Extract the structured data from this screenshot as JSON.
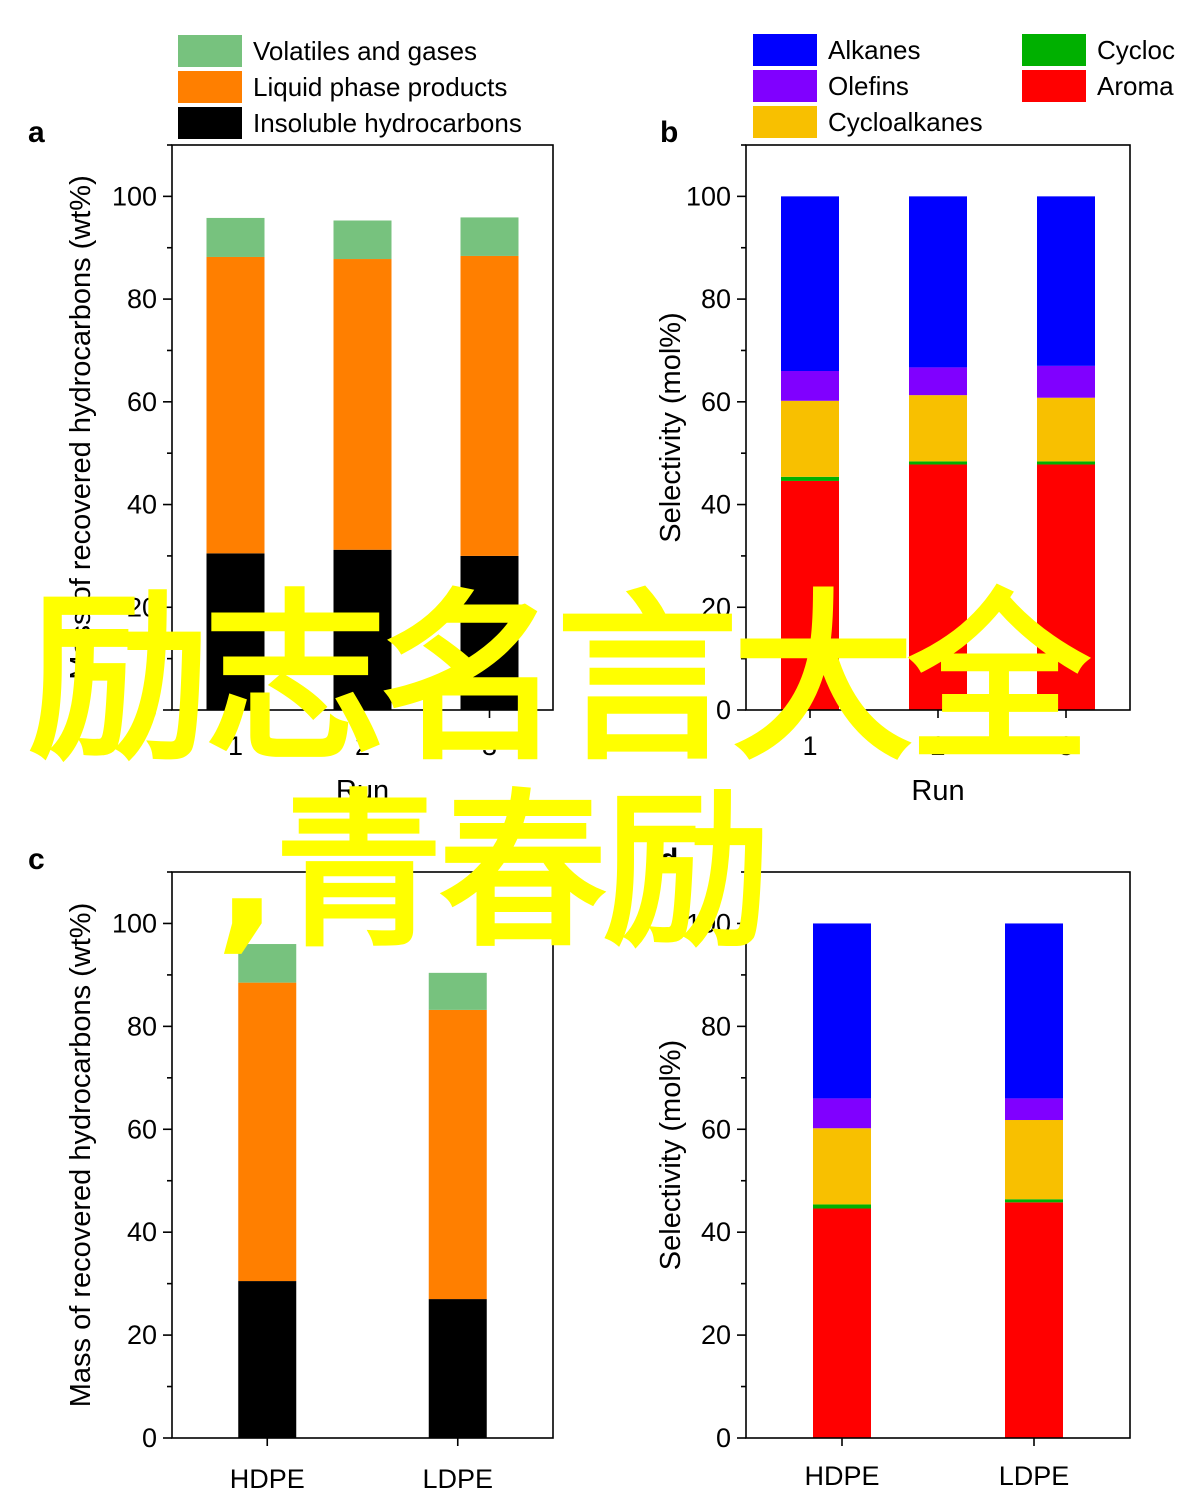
{
  "watermark": {
    "line1": "励志名言大全",
    "line2": ",青春励"
  },
  "colors": {
    "volatiles": "#77c27e",
    "liquid": "#ff7f00",
    "insoluble": "#000000",
    "alkanes": "#0000ff",
    "olefins": "#8000ff",
    "cycloalkanes": "#f8c000",
    "cycloolefins": "#00b000",
    "aromatics": "#ff0000"
  },
  "chart_data": [
    {
      "panel": "a",
      "type": "bar",
      "stacked": true,
      "categories": [
        "1",
        "2",
        "3"
      ],
      "xlabel": "Run",
      "ylabel": "Mass of recovered hydrocarbons (wt%)",
      "ylim": [
        0,
        110
      ],
      "yticks": [
        0,
        20,
        40,
        60,
        80,
        100
      ],
      "series": [
        {
          "name": "Insoluble hydrocarbons",
          "color_key": "insoluble",
          "values": [
            30.5,
            31.2,
            30.0
          ]
        },
        {
          "name": "Liquid phase products",
          "color_key": "liquid",
          "values": [
            57.7,
            56.6,
            58.4
          ]
        },
        {
          "name": "Volatiles and gases",
          "color_key": "volatiles",
          "values": [
            7.6,
            7.5,
            7.5
          ]
        }
      ],
      "legend": [
        "Volatiles and gases",
        "Liquid phase products",
        "Insoluble hydrocarbons"
      ]
    },
    {
      "panel": "b",
      "type": "bar",
      "stacked": true,
      "categories": [
        "1",
        "2",
        "3"
      ],
      "xlabel": "Run",
      "ylabel": "Selectivity (mol%)",
      "ylim": [
        0,
        110
      ],
      "yticks": [
        0,
        20,
        40,
        60,
        80,
        100
      ],
      "series": [
        {
          "name": "Aromatics",
          "color_key": "aromatics",
          "values": [
            44.6,
            47.8,
            47.8
          ]
        },
        {
          "name": "Cycloolefins",
          "color_key": "cycloolefins",
          "values": [
            0.8,
            0.6,
            0.6
          ]
        },
        {
          "name": "Cycloalkanes",
          "color_key": "cycloalkanes",
          "values": [
            14.8,
            12.9,
            12.4
          ]
        },
        {
          "name": "Olefins",
          "color_key": "olefins",
          "values": [
            5.8,
            5.4,
            6.2
          ]
        },
        {
          "name": "Alkanes",
          "color_key": "alkanes",
          "values": [
            34.0,
            33.3,
            33.0
          ]
        }
      ],
      "legend": [
        "Alkanes",
        "Olefins",
        "Cycloalkanes",
        "Cycloc",
        "Aroma"
      ]
    },
    {
      "panel": "c",
      "type": "bar",
      "stacked": true,
      "categories": [
        "HDPE",
        "LDPE"
      ],
      "xlabel": "",
      "ylabel": "Mass of recovered hydrocarbons (wt%)",
      "ylim": [
        0,
        110
      ],
      "yticks": [
        0,
        20,
        40,
        60,
        80,
        100
      ],
      "series": [
        {
          "name": "Insoluble hydrocarbons",
          "color_key": "insoluble",
          "values": [
            30.5,
            27.0
          ]
        },
        {
          "name": "Liquid phase products",
          "color_key": "liquid",
          "values": [
            58.0,
            56.2
          ]
        },
        {
          "name": "Volatiles and gases",
          "color_key": "volatiles",
          "values": [
            7.5,
            7.2
          ]
        }
      ]
    },
    {
      "panel": "d",
      "type": "bar",
      "stacked": true,
      "categories": [
        "HDPE",
        "LDPE"
      ],
      "xlabel": "",
      "ylabel": "Selectivity (mol%)",
      "ylim": [
        0,
        110
      ],
      "yticks": [
        0,
        20,
        40,
        60,
        80,
        100
      ],
      "series": [
        {
          "name": "Aromatics",
          "color_key": "aromatics",
          "values": [
            44.6,
            45.8
          ]
        },
        {
          "name": "Cycloolefins",
          "color_key": "cycloolefins",
          "values": [
            0.8,
            0.6
          ]
        },
        {
          "name": "Cycloalkanes",
          "color_key": "cycloalkanes",
          "values": [
            14.8,
            15.4
          ]
        },
        {
          "name": "Olefins",
          "color_key": "olefins",
          "values": [
            5.8,
            4.2
          ]
        },
        {
          "name": "Alkanes",
          "color_key": "alkanes",
          "values": [
            34.0,
            34.0
          ]
        }
      ]
    }
  ]
}
